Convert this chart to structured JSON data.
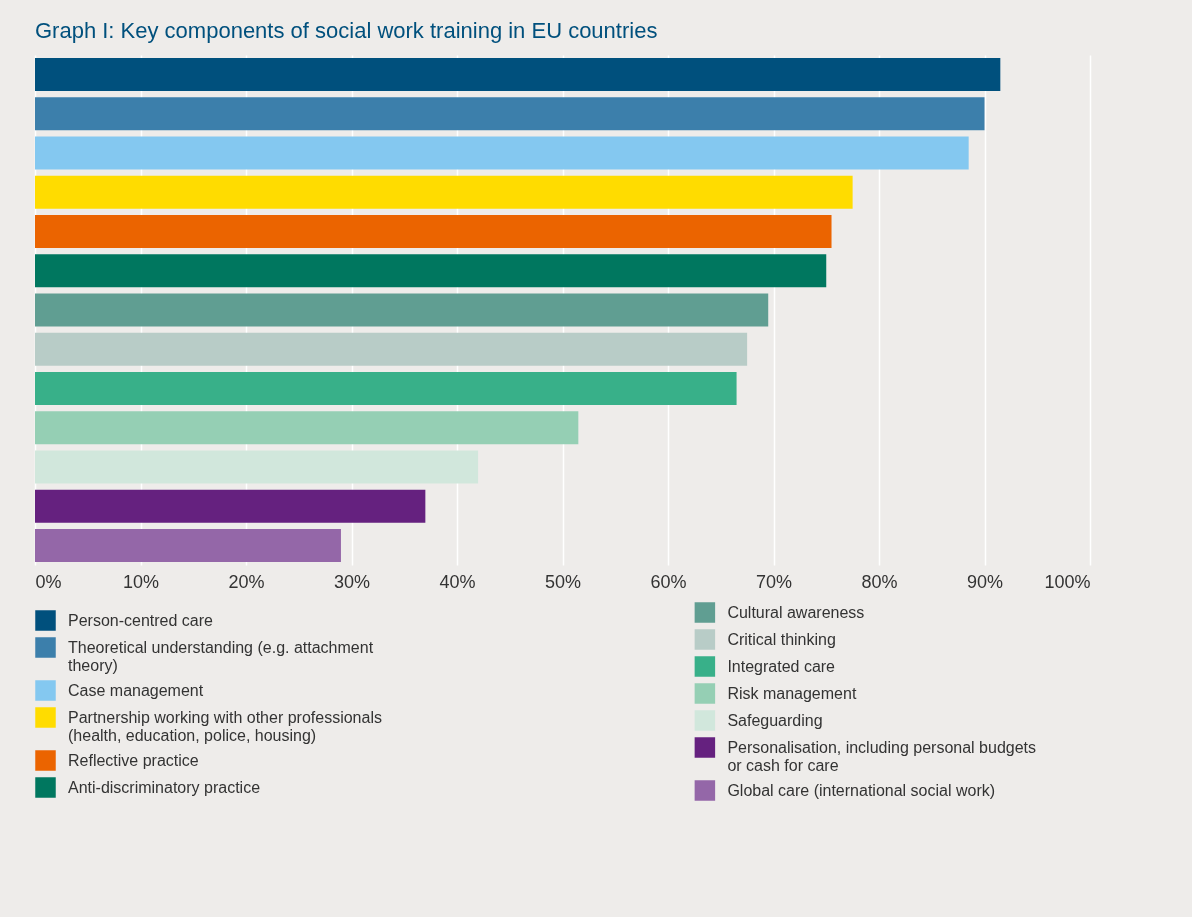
{
  "chart_data": {
    "type": "bar",
    "orientation": "horizontal",
    "title": "Graph I: Key components of social work training in EU countries",
    "categories": [
      null,
      null,
      null,
      null,
      null,
      null,
      null,
      null,
      null,
      null,
      null,
      null,
      null
    ],
    "series": [
      {
        "name": "Person-centred care",
        "color": "#00507d",
        "values": [
          91.5,
          null,
          null,
          null,
          null,
          null,
          null,
          null,
          null,
          null,
          null,
          null,
          null
        ]
      },
      {
        "name": "Theoretical understanding (e.g. attachment theory)",
        "color": "#3c7fab",
        "values": [
          null,
          90,
          null,
          null,
          null,
          null,
          null,
          null,
          null,
          null,
          null,
          null,
          null
        ]
      },
      {
        "name": "Case management",
        "color": "#84c8f0",
        "values": [
          null,
          null,
          88.5,
          null,
          null,
          null,
          null,
          null,
          null,
          null,
          null,
          null,
          null
        ]
      },
      {
        "name": "Partnership working with other professionals (health, education, police, housing)",
        "color": "#ffdc00",
        "values": [
          null,
          null,
          null,
          77.5,
          null,
          null,
          null,
          null,
          null,
          null,
          null,
          null,
          null
        ]
      },
      {
        "name": "Reflective practice",
        "color": "#eb6400",
        "values": [
          null,
          null,
          null,
          null,
          75.5,
          null,
          null,
          null,
          null,
          null,
          null,
          null,
          null
        ]
      },
      {
        "name": "Anti-discriminatory practice",
        "color": "#00775f",
        "values": [
          null,
          null,
          null,
          null,
          null,
          75,
          null,
          null,
          null,
          null,
          null,
          null,
          null
        ]
      },
      {
        "name": "Cultural awareness",
        "color": "#609e92",
        "values": [
          null,
          null,
          null,
          null,
          null,
          null,
          69.5,
          null,
          null,
          null,
          null,
          null,
          null
        ]
      },
      {
        "name": "Critical thinking",
        "color": "#b8ccc7",
        "values": [
          null,
          null,
          null,
          null,
          null,
          null,
          null,
          67.5,
          null,
          null,
          null,
          null,
          null
        ]
      },
      {
        "name": "Integrated care",
        "color": "#38b089",
        "values": [
          null,
          null,
          null,
          null,
          null,
          null,
          null,
          null,
          66.5,
          null,
          null,
          null,
          null
        ]
      },
      {
        "name": "Risk management",
        "color": "#95cfb4",
        "values": [
          null,
          null,
          null,
          null,
          null,
          null,
          null,
          null,
          null,
          51.5,
          null,
          null,
          null
        ]
      },
      {
        "name": "Safeguarding",
        "color": "#d1e7dc",
        "values": [
          null,
          null,
          null,
          null,
          null,
          null,
          null,
          null,
          null,
          null,
          42,
          null,
          null
        ]
      },
      {
        "name": "Personalisation, including personal budgets or cash for care",
        "color": "#65217f",
        "values": [
          null,
          null,
          null,
          null,
          null,
          null,
          null,
          null,
          null,
          null,
          null,
          37,
          null
        ]
      },
      {
        "name": "Global care (international social work)",
        "color": "#9467a8",
        "values": [
          null,
          null,
          null,
          null,
          null,
          null,
          null,
          null,
          null,
          null,
          null,
          null,
          29
        ]
      }
    ],
    "xlim": [
      0,
      100
    ],
    "xticks": [
      {
        "value": 0,
        "label": "0%"
      },
      {
        "value": 10,
        "label": "10%"
      },
      {
        "value": 20,
        "label": "20%"
      },
      {
        "value": 30,
        "label": "30%"
      },
      {
        "value": 40,
        "label": "40%"
      },
      {
        "value": 50,
        "label": "50%"
      },
      {
        "value": 60,
        "label": "60%"
      },
      {
        "value": 70,
        "label": "70%"
      },
      {
        "value": 80,
        "label": "80%"
      },
      {
        "value": 90,
        "label": "90%"
      },
      {
        "value": 100,
        "label": "100%"
      }
    ],
    "grid": "x",
    "legend": "bottom",
    "tick_labels": "x"
  }
}
